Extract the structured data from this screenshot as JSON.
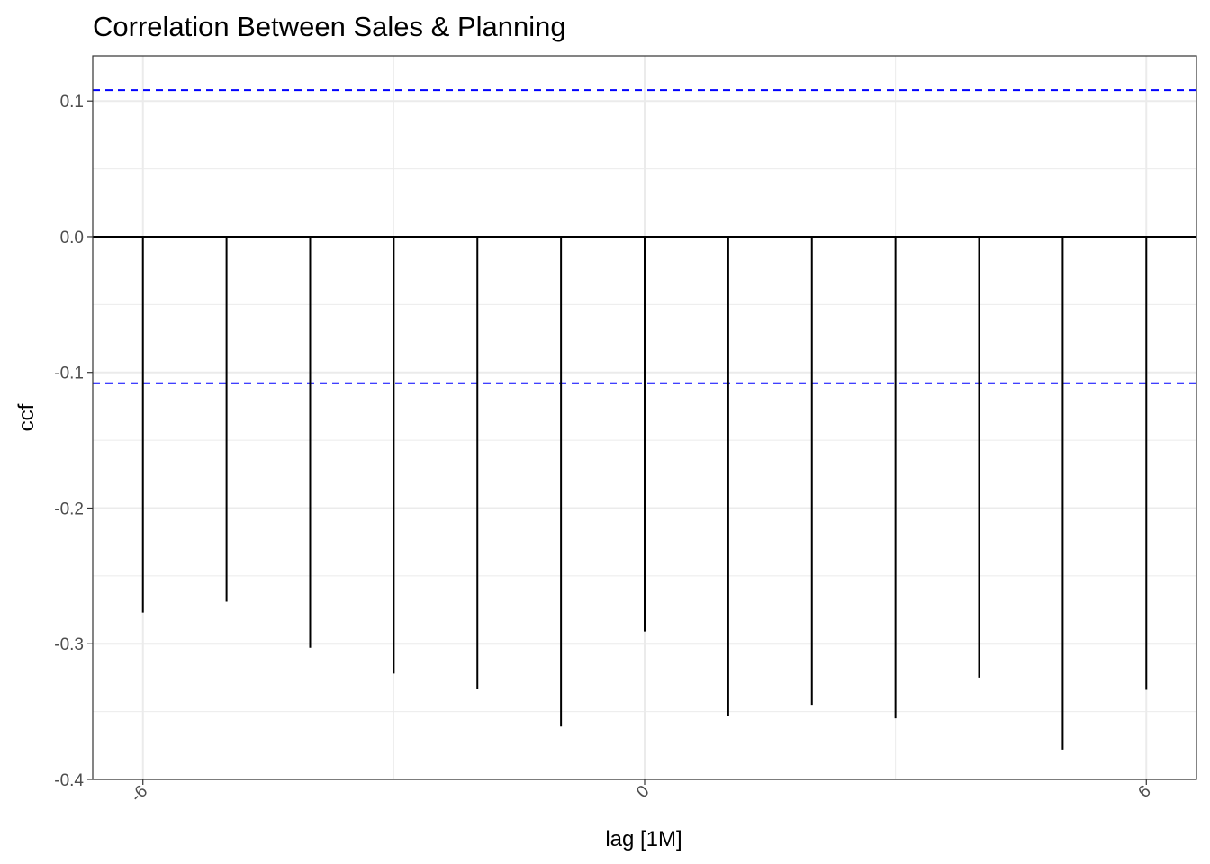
{
  "chart_data": {
    "type": "bar",
    "title": "Correlation Between Sales & Planning",
    "xlabel": "lag [1M]",
    "ylabel": "ccf",
    "xlim": [
      -6.6,
      6.6
    ],
    "ylim": [
      -0.4,
      0.1333
    ],
    "x_ticks": [
      {
        "value": -6,
        "label": "-6"
      },
      {
        "value": 0,
        "label": "0"
      },
      {
        "value": 6,
        "label": "6"
      }
    ],
    "x_minor_ticks": [
      -3,
      3
    ],
    "y_ticks": [
      {
        "value": 0.1,
        "label": "0.1"
      },
      {
        "value": 0.0,
        "label": "0.0"
      },
      {
        "value": -0.1,
        "label": "-0.1"
      },
      {
        "value": -0.2,
        "label": "-0.2"
      },
      {
        "value": -0.3,
        "label": "-0.3"
      },
      {
        "value": -0.4,
        "label": "-0.4"
      }
    ],
    "y_minor_ticks": [
      0.05,
      -0.05,
      -0.15,
      -0.25,
      -0.35
    ],
    "x": [
      -6,
      -5,
      -4,
      -3,
      -2,
      -1,
      0,
      1,
      2,
      3,
      4,
      5,
      6
    ],
    "values": [
      -0.277,
      -0.269,
      -0.303,
      -0.322,
      -0.333,
      -0.361,
      -0.291,
      -0.353,
      -0.345,
      -0.355,
      -0.325,
      -0.378,
      -0.334
    ],
    "confidence_bounds": [
      0.108,
      -0.108
    ],
    "grid": true,
    "colors": {
      "bars": "#000000",
      "zero_line": "#000000",
      "confidence": "#0000ff",
      "grid": "#ebebeb",
      "panel_border": "#333333",
      "tick_labels": "#4d4d4d"
    }
  }
}
